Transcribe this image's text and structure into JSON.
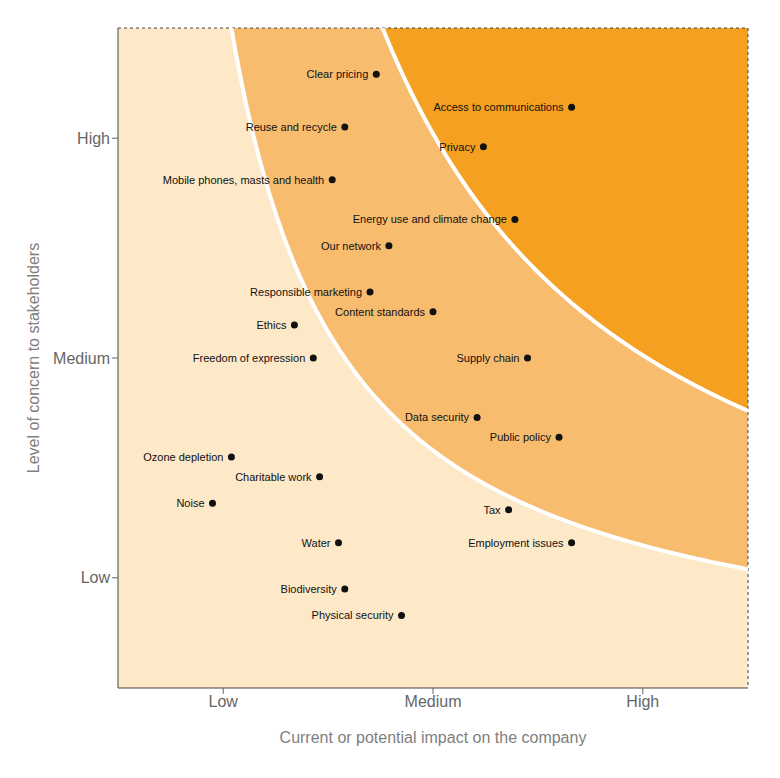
{
  "chart_data": {
    "type": "scatter",
    "xlabel": "Current or potential impact on the company",
    "ylabel": "Level of concern to stakeholders",
    "xlim": [
      0,
      10
    ],
    "ylim": [
      0,
      10
    ],
    "xticks": [
      {
        "value": 1.67,
        "label": "Low"
      },
      {
        "value": 5.0,
        "label": "Medium"
      },
      {
        "value": 8.33,
        "label": "High"
      }
    ],
    "yticks": [
      {
        "value": 1.67,
        "label": "Low"
      },
      {
        "value": 5.0,
        "label": "Medium"
      },
      {
        "value": 8.33,
        "label": "High"
      }
    ],
    "grid": false,
    "color": "#111111",
    "bands": {
      "levels": [
        18,
        42
      ],
      "colors": [
        "#fde8c8",
        "#f8bc6e",
        "#f5a020"
      ],
      "line_color": "#ffffff"
    },
    "points": [
      {
        "label": "Clear pricing",
        "x": 4.1,
        "y": 9.3
      },
      {
        "label": "Access to communications",
        "x": 7.2,
        "y": 8.8
      },
      {
        "label": "Privacy",
        "x": 5.8,
        "y": 8.2
      },
      {
        "label": "Reuse and recycle",
        "x": 3.6,
        "y": 8.5
      },
      {
        "label": "Mobile phones, masts and health",
        "x": 3.4,
        "y": 7.7
      },
      {
        "label": "Energy use and climate change",
        "x": 6.3,
        "y": 7.1
      },
      {
        "label": "Our network",
        "x": 4.3,
        "y": 6.7
      },
      {
        "label": "Responsible marketing",
        "x": 4.0,
        "y": 6.0
      },
      {
        "label": "Content standards",
        "x": 5.0,
        "y": 5.7
      },
      {
        "label": "Ethics",
        "x": 2.8,
        "y": 5.5
      },
      {
        "label": "Freedom of expression",
        "x": 3.1,
        "y": 5.0
      },
      {
        "label": "Supply chain",
        "x": 6.5,
        "y": 5.0
      },
      {
        "label": "Data security",
        "x": 5.7,
        "y": 4.1
      },
      {
        "label": "Public policy",
        "x": 7.0,
        "y": 3.8
      },
      {
        "label": "Ozone depletion",
        "x": 1.8,
        "y": 3.5
      },
      {
        "label": "Charitable work",
        "x": 3.2,
        "y": 3.2
      },
      {
        "label": "Noise",
        "x": 1.5,
        "y": 2.8
      },
      {
        "label": "Tax",
        "x": 6.2,
        "y": 2.7
      },
      {
        "label": "Water",
        "x": 3.5,
        "y": 2.2
      },
      {
        "label": "Employment issues",
        "x": 7.2,
        "y": 2.2
      },
      {
        "label": "Biodiversity",
        "x": 3.6,
        "y": 1.5
      },
      {
        "label": "Physical security",
        "x": 4.5,
        "y": 1.1
      }
    ]
  }
}
